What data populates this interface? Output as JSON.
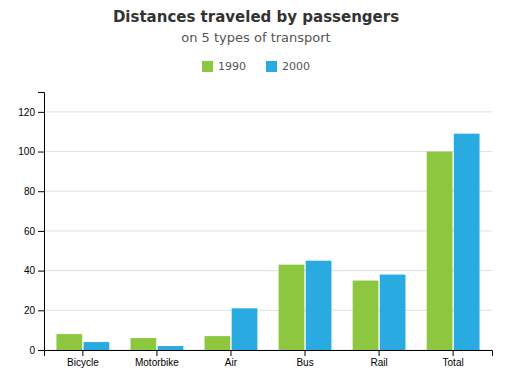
{
  "chart_data": {
    "type": "bar",
    "title": "Distances traveled by passengers",
    "subtitle": "on 5 types of transport",
    "categories": [
      "Bicycle",
      "Motorbike",
      "Air",
      "Bus",
      "Rail",
      "Total"
    ],
    "series": [
      {
        "name": "1990",
        "color": "#8dc63f",
        "values": [
          8,
          6,
          7,
          43,
          35,
          100
        ]
      },
      {
        "name": "2000",
        "color": "#29abe2",
        "values": [
          4,
          2,
          21,
          45,
          38,
          109
        ]
      }
    ],
    "ylim": [
      0,
      130
    ],
    "yticks": [
      0,
      20,
      40,
      60,
      80,
      100,
      120
    ],
    "grid": true,
    "legend": "top"
  }
}
